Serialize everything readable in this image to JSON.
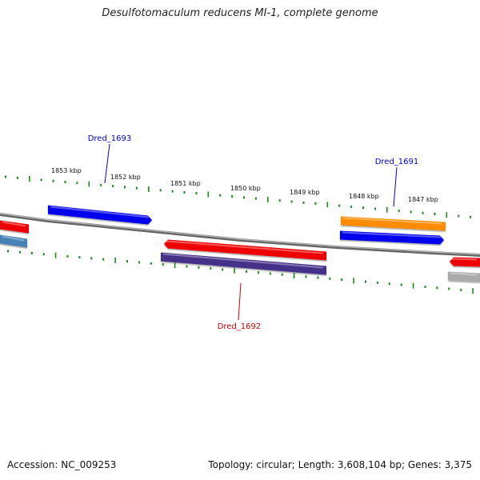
{
  "title": "Desulfotomaculum reducens MI-1, complete genome",
  "footer": {
    "accession": "Accession: NC_009253",
    "summary": "Topology: circular; Length: 3,608,104 bp; Genes: 3,375"
  },
  "colors": {
    "tick": "#1a8a1a",
    "backbone": "#808080",
    "label_blue": "#0000cc",
    "label_red": "#cc0000"
  },
  "ticks": {
    "labels": [
      "1853 kbp",
      "1852 kbp",
      "1851 kbp",
      "1850 kbp",
      "1849 kbp",
      "1848 kbp",
      "1847 kbp"
    ]
  },
  "genes": [
    {
      "name": "Dred_1693",
      "strand": "forward",
      "color": "#0000ee",
      "labeled": true
    },
    {
      "name": "Dred_1692",
      "strand": "reverse",
      "color": "#ee0000",
      "labeled": true
    },
    {
      "name": "Dred_1691",
      "strand": "forward",
      "color": "#0000ee",
      "labeled": true
    },
    {
      "name": "",
      "strand": "forward",
      "color": "#ff8c00",
      "labeled": false
    },
    {
      "name": "",
      "strand": "reverse",
      "color": "#443388",
      "labeled": false
    },
    {
      "name": "",
      "strand": "reverse",
      "color": "#ee0000",
      "labeled": false
    },
    {
      "name": "",
      "strand": "reverse",
      "color": "#4682b4",
      "labeled": false
    },
    {
      "name": "",
      "strand": "reverse",
      "color": "#ee0000",
      "labeled": false
    },
    {
      "name": "",
      "strand": "reverse",
      "color": "#aaaaaa",
      "labeled": false
    }
  ]
}
